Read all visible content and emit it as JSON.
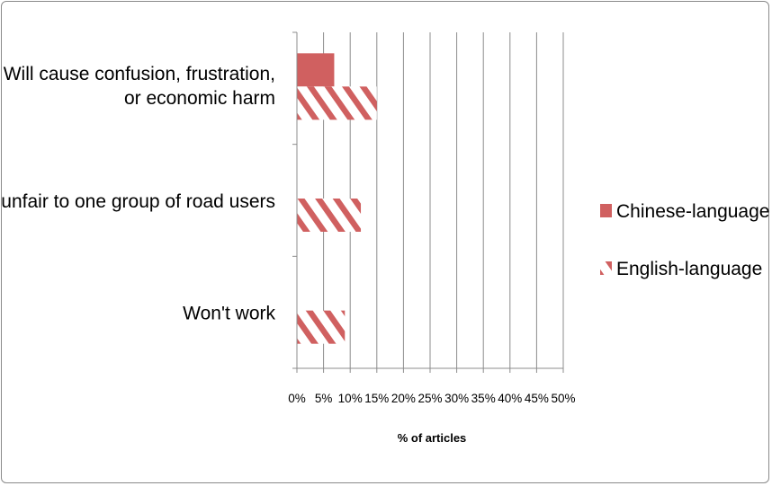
{
  "chart_data": {
    "type": "bar",
    "orientation": "horizontal",
    "categories": [
      [
        "Will cause confusion, frustration,",
        "or economic harm"
      ],
      [
        "Is unfair to one group of road users"
      ],
      [
        "Won't work"
      ]
    ],
    "series": [
      {
        "name": "Chinese-language",
        "values": [
          7,
          0,
          0
        ],
        "color": "#d06060",
        "fill": "solid"
      },
      {
        "name": "English-language",
        "values": [
          15,
          12,
          9
        ],
        "color": "#d06060",
        "fill": "diagonal-stripes"
      }
    ],
    "xlabel": "% of articles",
    "xlim": [
      0,
      50
    ],
    "xticks": [
      "0%",
      "5%",
      "10%",
      "15%",
      "20%",
      "25%",
      "30%",
      "35%",
      "40%",
      "45%",
      "50%"
    ],
    "grid": "vertical",
    "legend": "right"
  }
}
